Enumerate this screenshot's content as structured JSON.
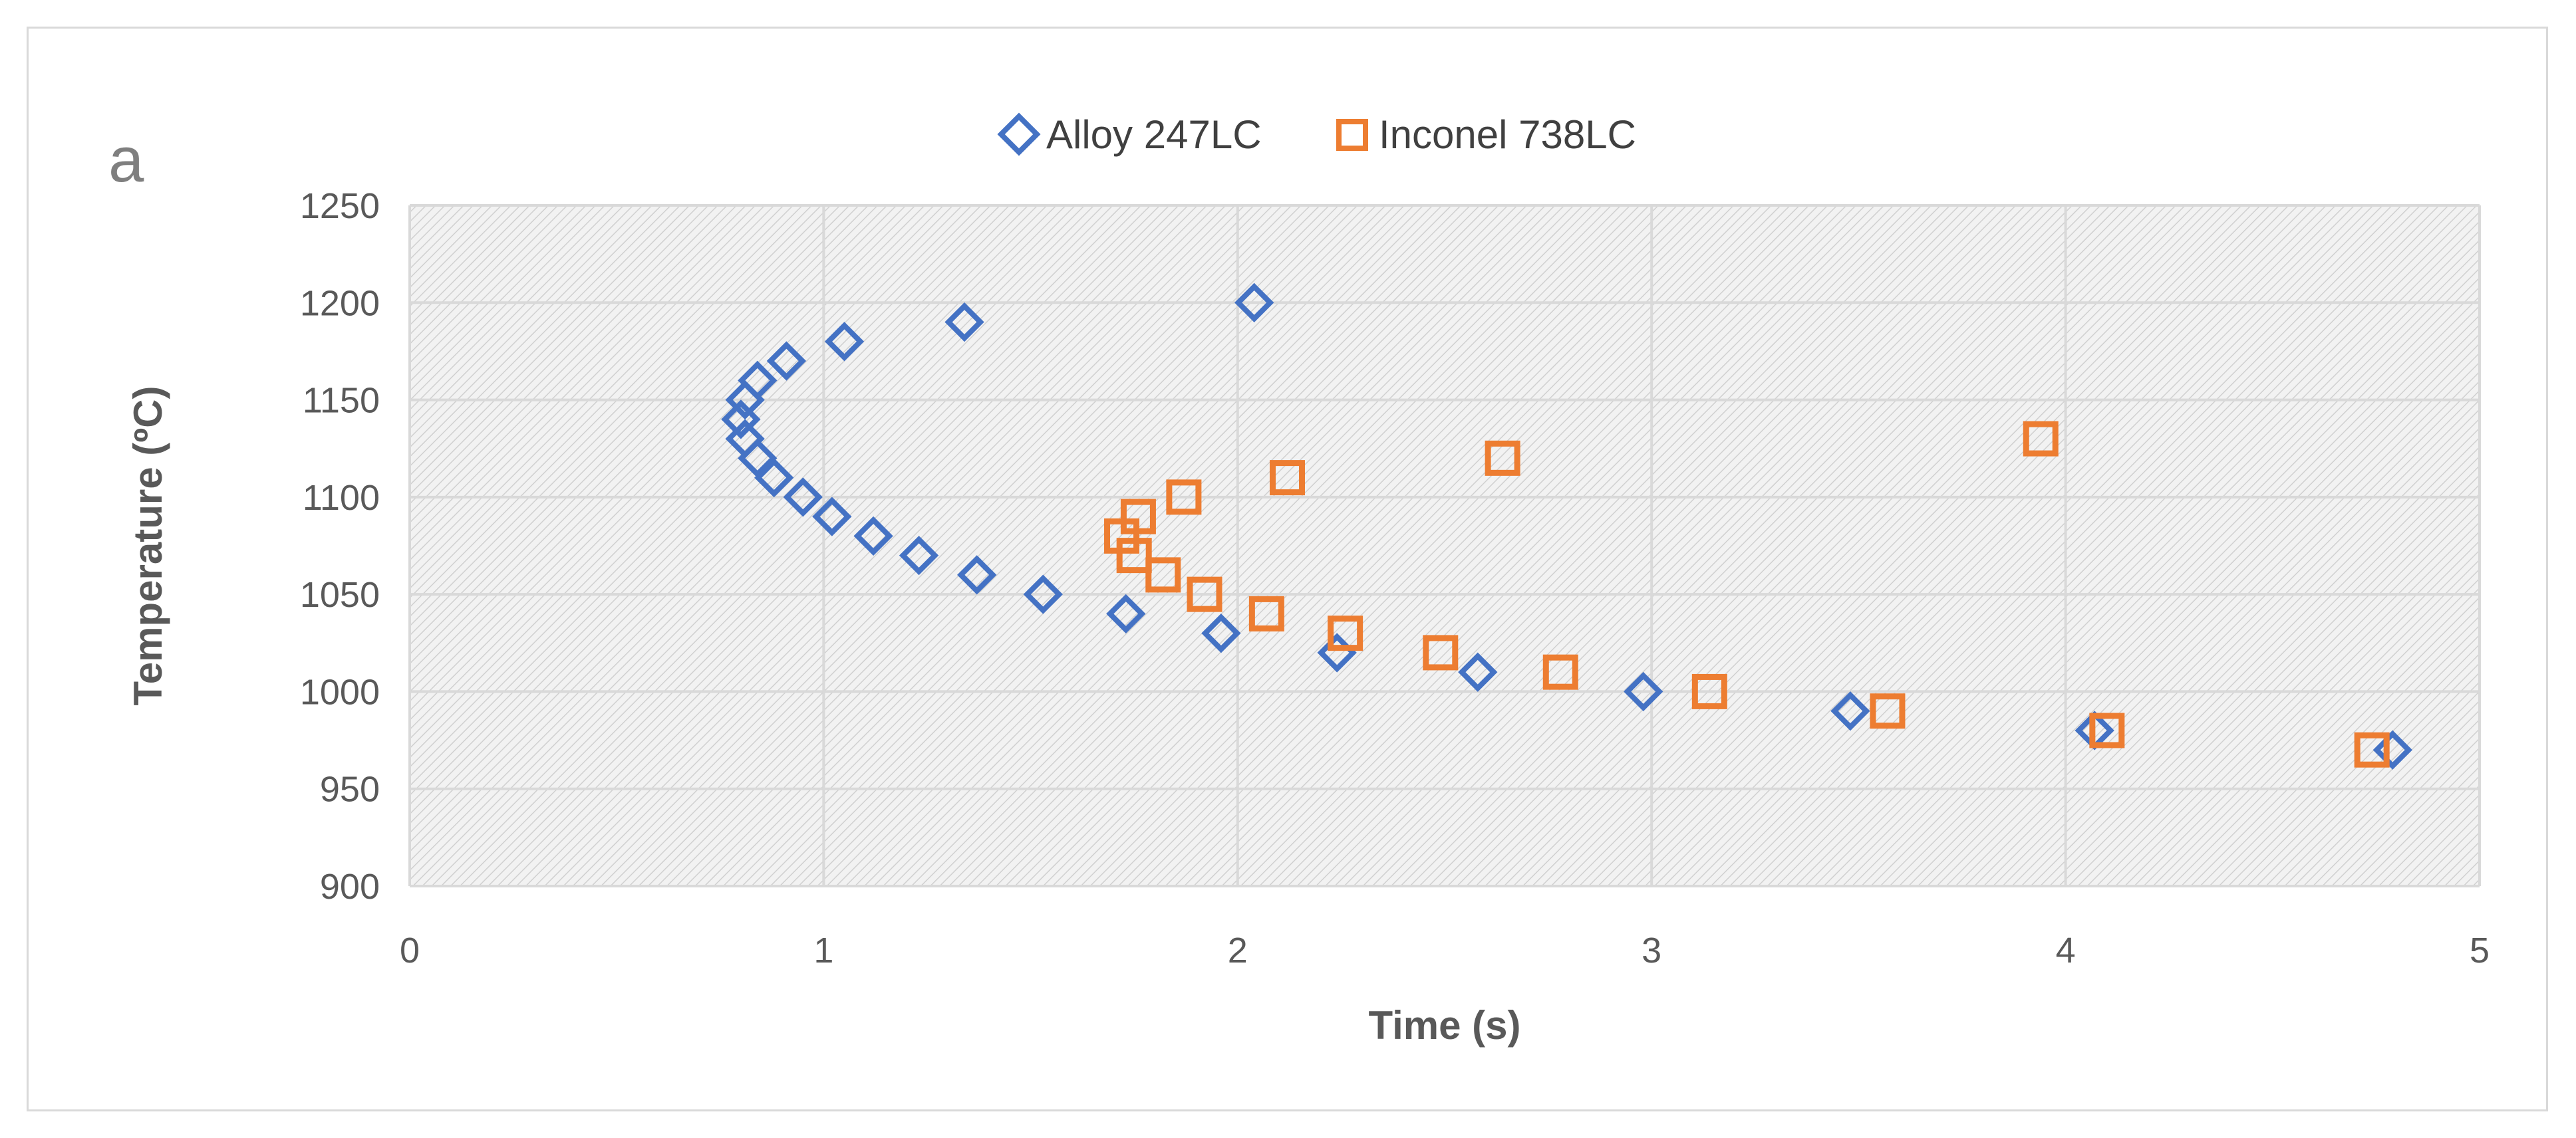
{
  "panel_label": "a",
  "chart_data": {
    "type": "scatter",
    "xlabel": "Time (s)",
    "ylabel": "Temperature (ºC)",
    "xlim": [
      0,
      5
    ],
    "ylim": [
      900,
      1250
    ],
    "x_ticks": [
      "0",
      "1",
      "2",
      "3",
      "4",
      "5"
    ],
    "y_ticks": [
      "900",
      "950",
      "1000",
      "1050",
      "1100",
      "1150",
      "1200",
      "1250"
    ],
    "grid": true,
    "legend_position": "top-center",
    "series": [
      {
        "name": "Alloy 247LC",
        "marker": "diamond",
        "color": "#4472c4",
        "points": [
          [
            2.04,
            1200
          ],
          [
            1.34,
            1190
          ],
          [
            1.05,
            1180
          ],
          [
            0.91,
            1170
          ],
          [
            0.84,
            1160
          ],
          [
            0.81,
            1150
          ],
          [
            0.8,
            1140
          ],
          [
            0.81,
            1130
          ],
          [
            0.84,
            1120
          ],
          [
            0.88,
            1110
          ],
          [
            0.95,
            1100
          ],
          [
            1.02,
            1090
          ],
          [
            1.12,
            1080
          ],
          [
            1.23,
            1070
          ],
          [
            1.37,
            1060
          ],
          [
            1.53,
            1050
          ],
          [
            1.73,
            1040
          ],
          [
            1.96,
            1030
          ],
          [
            2.24,
            1020
          ],
          [
            2.58,
            1010
          ],
          [
            2.98,
            1000
          ],
          [
            3.48,
            990
          ],
          [
            4.07,
            980
          ],
          [
            4.79,
            970
          ]
        ]
      },
      {
        "name": "Inconel 738LC",
        "marker": "square",
        "color": "#ed7d31",
        "points": [
          [
            3.94,
            1130
          ],
          [
            2.64,
            1120
          ],
          [
            2.12,
            1110
          ],
          [
            1.87,
            1100
          ],
          [
            1.76,
            1090
          ],
          [
            1.72,
            1080
          ],
          [
            1.75,
            1070
          ],
          [
            1.82,
            1060
          ],
          [
            1.92,
            1050
          ],
          [
            2.07,
            1040
          ],
          [
            2.26,
            1030
          ],
          [
            2.49,
            1020
          ],
          [
            2.78,
            1010
          ],
          [
            3.14,
            1000
          ],
          [
            3.57,
            990
          ],
          [
            4.1,
            980
          ],
          [
            4.74,
            970
          ]
        ]
      }
    ]
  }
}
